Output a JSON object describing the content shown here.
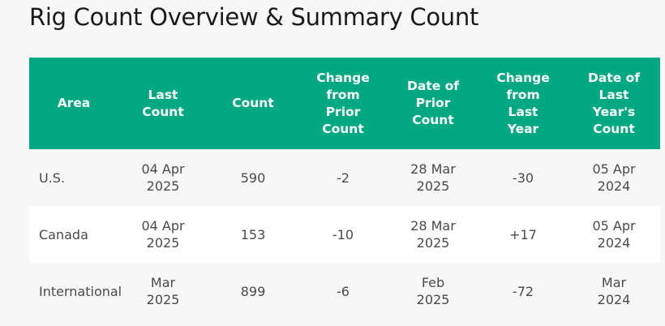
{
  "page": {
    "title": "Rig Count Overview & Summary Count"
  },
  "table": {
    "headers": [
      [
        "Area"
      ],
      [
        "Last",
        "Count"
      ],
      [
        "Count"
      ],
      [
        "Change",
        "from",
        "Prior",
        "Count"
      ],
      [
        "Date of",
        "Prior",
        "Count"
      ],
      [
        "Change",
        "from",
        "Last",
        "Year"
      ],
      [
        "Date of",
        "Last",
        "Year's",
        "Count"
      ]
    ],
    "rows": [
      {
        "area": "U.S.",
        "last_count": [
          "04 Apr",
          "2025"
        ],
        "count": "590",
        "change_prior": "-2",
        "change_prior_sign": "neg",
        "date_prior": [
          "28 Mar",
          "2025"
        ],
        "change_year": "-30",
        "change_year_sign": "neg",
        "date_last_year": [
          "05 Apr",
          "2024"
        ]
      },
      {
        "area": "Canada",
        "last_count": [
          "04 Apr",
          "2025"
        ],
        "count": "153",
        "change_prior": "-10",
        "change_prior_sign": "neg",
        "date_prior": [
          "28 Mar",
          "2025"
        ],
        "change_year": "+17",
        "change_year_sign": "pos",
        "date_last_year": [
          "05 Apr",
          "2024"
        ]
      },
      {
        "area": "International",
        "last_count": [
          "Mar",
          "2025"
        ],
        "count": "899",
        "change_prior": "-6",
        "change_prior_sign": "neg",
        "date_prior": [
          "Feb",
          "2025"
        ],
        "change_year": "-72",
        "change_year_sign": "neg",
        "date_last_year": [
          "Mar",
          "2024"
        ]
      }
    ]
  },
  "colors": {
    "header_bg": "#02a881",
    "negative": "#e31b1b",
    "positive": "#1aa31a"
  }
}
